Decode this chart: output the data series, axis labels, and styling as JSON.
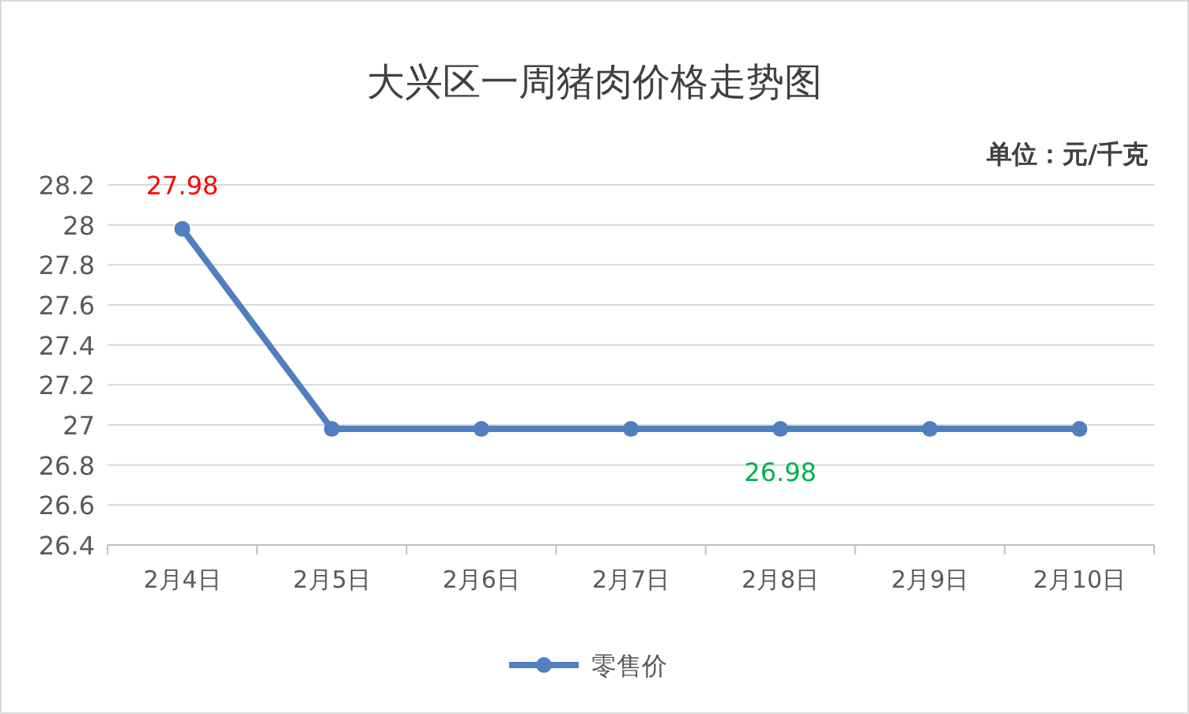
{
  "chart_data": {
    "type": "line",
    "title": "大兴区一周猪肉价格走势图",
    "subtitle": "单位：元/千克",
    "categories": [
      "2月4日",
      "2月5日",
      "2月6日",
      "2月7日",
      "2月8日",
      "2月9日",
      "2月10日"
    ],
    "series": [
      {
        "name": "零售价",
        "color": "#4f7fbe",
        "values": [
          27.98,
          26.98,
          26.98,
          26.98,
          26.98,
          26.98,
          26.98
        ]
      }
    ],
    "annotations": [
      {
        "text": "27.98",
        "x": "2月4日",
        "y": 27.98
      },
      {
        "text": "26.98",
        "x": "2月8日",
        "y": 26.98
      }
    ],
    "ylim": [
      26.4,
      28.2
    ],
    "yticks": [
      26.4,
      26.6,
      26.8,
      27,
      27.2,
      27.4,
      27.6,
      27.8,
      28,
      28.2
    ],
    "grid": "y",
    "legend": "bottom",
    "marker": "circle",
    "line_style": "solid"
  }
}
